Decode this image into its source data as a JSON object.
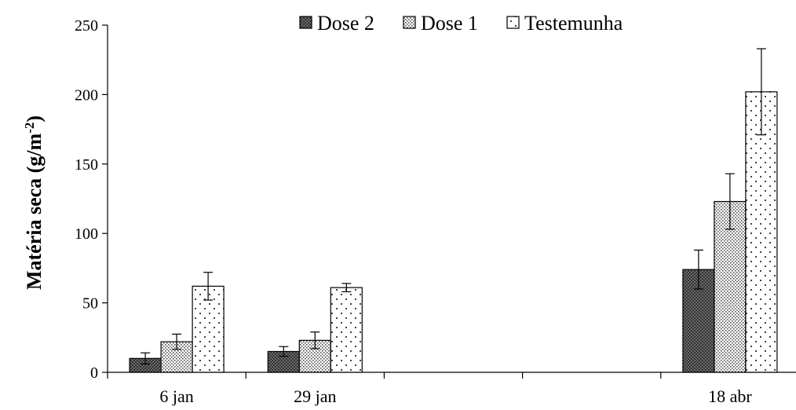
{
  "chart_data": {
    "type": "bar",
    "title": "",
    "xlabel": "",
    "ylabel": "Matéria seca (g/m",
    "ylabel_sup": "-2",
    "ylabel_close": ")",
    "ylim": [
      0,
      250
    ],
    "yticks": [
      0,
      50,
      100,
      150,
      200,
      250
    ],
    "x_slots": 5,
    "categories": [
      "6 jan",
      "29 jan",
      "18 abr"
    ],
    "category_slots": [
      0,
      1,
      4
    ],
    "legend_position": "top",
    "series": [
      {
        "name": "Dose 2",
        "pattern": "crosshatch",
        "values": [
          10,
          15,
          74
        ],
        "errors": [
          4,
          3.5,
          14
        ]
      },
      {
        "name": "Dose 1",
        "pattern": "dense-dots",
        "values": [
          22,
          23,
          123
        ],
        "errors": [
          5.5,
          6,
          20
        ]
      },
      {
        "name": "Testemunha",
        "pattern": "sparse-dots",
        "values": [
          62,
          61,
          202
        ],
        "errors": [
          10,
          3,
          31
        ]
      }
    ],
    "colors": {
      "fill": "#ffffff",
      "stroke": "#000000",
      "dark_fill": "#555555"
    }
  }
}
